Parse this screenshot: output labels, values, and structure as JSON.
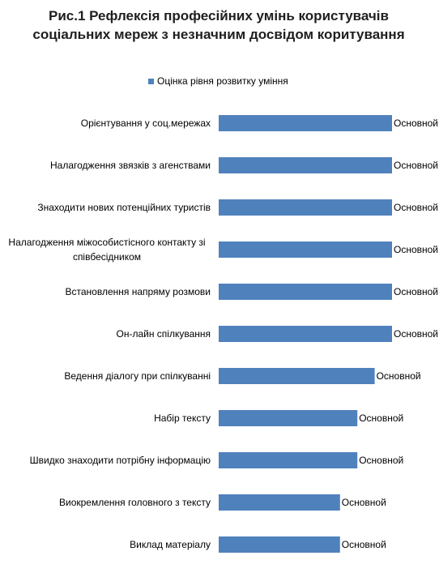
{
  "chart_data": {
    "type": "barh",
    "title": "Рис.1 Рефлексія професійних умінь користувачів соціальних мереж з незначним досвідом коритування",
    "categories": [
      "Орієнтування у соц.мережах",
      "Налагодження звязків з агенствами",
      "Знаходити нових потенційних туристів",
      "Налагодження міжособистісного контакту зі співбесідником",
      "Встановлення напряму розмови",
      "Он-лайн спілкування",
      "Ведення діалогу при спілкуванні",
      "Набір тексту",
      "Швидко знаходити потрібну інформацію",
      "Виокремлення головного з тексту",
      "Виклад матеріалу"
    ],
    "series": [
      {
        "name": "Оцінка рівня розвитку уміння",
        "color": "#4f81bd",
        "values": [
          10,
          10,
          10,
          10,
          10,
          10,
          9,
          8,
          8,
          7,
          7
        ],
        "value_labels": [
          "Основной",
          "Основной",
          "Основной",
          "Основной",
          "Основной",
          "Основной",
          "Основной",
          "Основной",
          "Основной",
          "Основной",
          "Основной"
        ]
      }
    ],
    "legend": "top"
  }
}
